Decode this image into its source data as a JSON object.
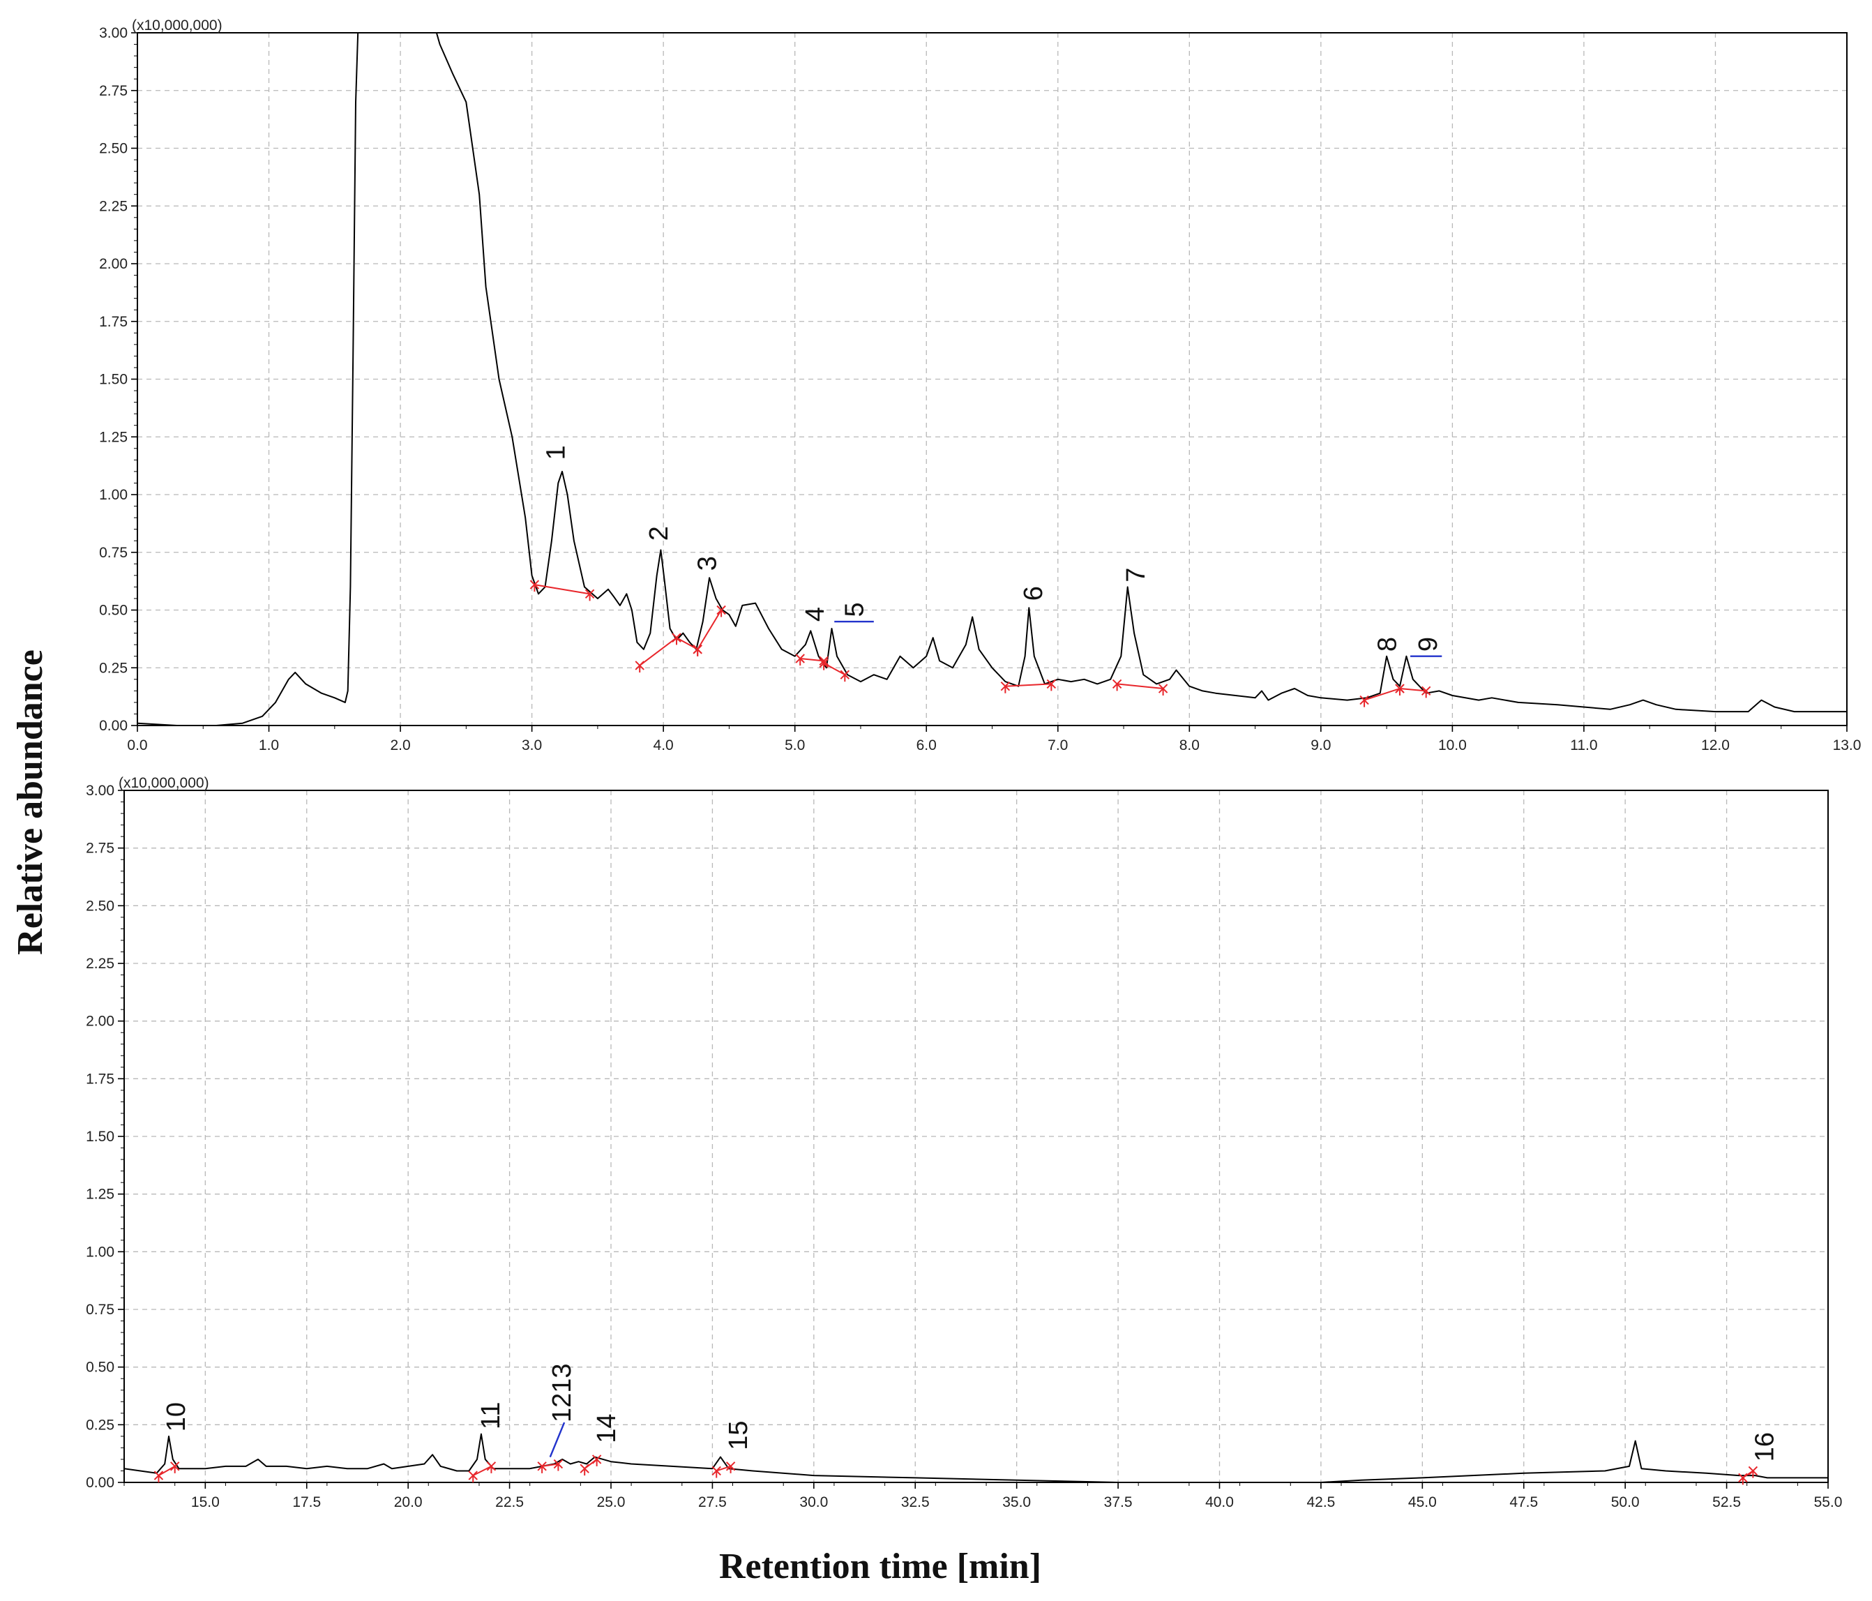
{
  "ylabel": "Relative abundance",
  "xlabel": "Retention time [min]",
  "colors": {
    "trace": "#000000",
    "baseline_marker": "#e8262b",
    "split_marker": "#2233cc",
    "grid": "#b8b8b8",
    "frame": "#000000"
  },
  "chart_data": [
    {
      "type": "line",
      "name": "upper",
      "multiplier": "(x10,000,000)",
      "xlim": [
        0,
        13
      ],
      "ylim": [
        0,
        3
      ],
      "x_ticks": [
        "0.0",
        "1.0",
        "2.0",
        "3.0",
        "4.0",
        "5.0",
        "6.0",
        "7.0",
        "8.0",
        "9.0",
        "10.0",
        "11.0",
        "12.0",
        "13.0"
      ],
      "x_tick_values": [
        0,
        1,
        2,
        3,
        4,
        5,
        6,
        7,
        8,
        9,
        10,
        11,
        12,
        13
      ],
      "x_minor_step": 0.5,
      "y_ticks": [
        "0.00",
        "0.25",
        "0.50",
        "0.75",
        "1.00",
        "1.25",
        "1.50",
        "1.75",
        "2.00",
        "2.25",
        "2.50",
        "2.75",
        "3.00"
      ],
      "y_tick_values": [
        0,
        0.25,
        0.5,
        0.75,
        1,
        1.25,
        1.5,
        1.75,
        2,
        2.25,
        2.5,
        2.75,
        3
      ],
      "grid": true,
      "trace": [
        [
          0,
          0.01
        ],
        [
          0.3,
          0.0
        ],
        [
          0.6,
          0.0
        ],
        [
          0.8,
          0.01
        ],
        [
          0.95,
          0.04
        ],
        [
          1.05,
          0.1
        ],
        [
          1.15,
          0.2
        ],
        [
          1.2,
          0.23
        ],
        [
          1.28,
          0.18
        ],
        [
          1.4,
          0.14
        ],
        [
          1.5,
          0.12
        ],
        [
          1.58,
          0.1
        ],
        [
          1.6,
          0.15
        ],
        [
          1.62,
          0.6
        ],
        [
          1.64,
          1.6
        ],
        [
          1.66,
          2.7
        ],
        [
          1.68,
          3.05
        ],
        [
          2.25,
          3.05
        ],
        [
          2.3,
          2.95
        ],
        [
          2.4,
          2.82
        ],
        [
          2.5,
          2.7
        ],
        [
          2.6,
          2.3
        ],
        [
          2.65,
          1.9
        ],
        [
          2.75,
          1.5
        ],
        [
          2.85,
          1.25
        ],
        [
          2.95,
          0.9
        ],
        [
          3.0,
          0.65
        ],
        [
          3.05,
          0.57
        ],
        [
          3.1,
          0.6
        ],
        [
          3.15,
          0.8
        ],
        [
          3.2,
          1.05
        ],
        [
          3.23,
          1.1
        ],
        [
          3.27,
          1.0
        ],
        [
          3.32,
          0.8
        ],
        [
          3.4,
          0.6
        ],
        [
          3.5,
          0.55
        ],
        [
          3.58,
          0.59
        ],
        [
          3.62,
          0.56
        ],
        [
          3.67,
          0.52
        ],
        [
          3.72,
          0.57
        ],
        [
          3.76,
          0.5
        ],
        [
          3.8,
          0.36
        ],
        [
          3.85,
          0.33
        ],
        [
          3.9,
          0.4
        ],
        [
          3.95,
          0.65
        ],
        [
          3.98,
          0.76
        ],
        [
          4.01,
          0.62
        ],
        [
          4.05,
          0.42
        ],
        [
          4.1,
          0.37
        ],
        [
          4.15,
          0.4
        ],
        [
          4.2,
          0.36
        ],
        [
          4.25,
          0.33
        ],
        [
          4.3,
          0.45
        ],
        [
          4.35,
          0.64
        ],
        [
          4.4,
          0.55
        ],
        [
          4.45,
          0.5
        ],
        [
          4.5,
          0.48
        ],
        [
          4.55,
          0.43
        ],
        [
          4.6,
          0.52
        ],
        [
          4.7,
          0.53
        ],
        [
          4.8,
          0.42
        ],
        [
          4.9,
          0.33
        ],
        [
          5.0,
          0.3
        ],
        [
          5.08,
          0.35
        ],
        [
          5.12,
          0.41
        ],
        [
          5.18,
          0.3
        ],
        [
          5.24,
          0.25
        ],
        [
          5.28,
          0.42
        ],
        [
          5.32,
          0.3
        ],
        [
          5.4,
          0.22
        ],
        [
          5.5,
          0.19
        ],
        [
          5.6,
          0.22
        ],
        [
          5.7,
          0.2
        ],
        [
          5.8,
          0.3
        ],
        [
          5.9,
          0.25
        ],
        [
          6.0,
          0.3
        ],
        [
          6.05,
          0.38
        ],
        [
          6.1,
          0.28
        ],
        [
          6.2,
          0.25
        ],
        [
          6.3,
          0.35
        ],
        [
          6.35,
          0.47
        ],
        [
          6.4,
          0.33
        ],
        [
          6.5,
          0.25
        ],
        [
          6.6,
          0.19
        ],
        [
          6.7,
          0.17
        ],
        [
          6.75,
          0.3
        ],
        [
          6.78,
          0.51
        ],
        [
          6.82,
          0.3
        ],
        [
          6.9,
          0.18
        ],
        [
          7.0,
          0.2
        ],
        [
          7.1,
          0.19
        ],
        [
          7.2,
          0.2
        ],
        [
          7.3,
          0.18
        ],
        [
          7.4,
          0.2
        ],
        [
          7.48,
          0.3
        ],
        [
          7.53,
          0.6
        ],
        [
          7.58,
          0.4
        ],
        [
          7.65,
          0.22
        ],
        [
          7.75,
          0.18
        ],
        [
          7.85,
          0.2
        ],
        [
          7.9,
          0.24
        ],
        [
          8.0,
          0.17
        ],
        [
          8.1,
          0.15
        ],
        [
          8.2,
          0.14
        ],
        [
          8.35,
          0.13
        ],
        [
          8.5,
          0.12
        ],
        [
          8.55,
          0.15
        ],
        [
          8.6,
          0.11
        ],
        [
          8.7,
          0.14
        ],
        [
          8.8,
          0.16
        ],
        [
          8.9,
          0.13
        ],
        [
          9.0,
          0.12
        ],
        [
          9.2,
          0.11
        ],
        [
          9.35,
          0.12
        ],
        [
          9.45,
          0.14
        ],
        [
          9.5,
          0.3
        ],
        [
          9.55,
          0.2
        ],
        [
          9.6,
          0.17
        ],
        [
          9.65,
          0.3
        ],
        [
          9.7,
          0.2
        ],
        [
          9.8,
          0.14
        ],
        [
          9.9,
          0.15
        ],
        [
          10.0,
          0.13
        ],
        [
          10.2,
          0.11
        ],
        [
          10.3,
          0.12
        ],
        [
          10.5,
          0.1
        ],
        [
          10.8,
          0.09
        ],
        [
          11.0,
          0.08
        ],
        [
          11.2,
          0.07
        ],
        [
          11.35,
          0.09
        ],
        [
          11.45,
          0.11
        ],
        [
          11.55,
          0.09
        ],
        [
          11.7,
          0.07
        ],
        [
          12.0,
          0.06
        ],
        [
          12.25,
          0.06
        ],
        [
          12.35,
          0.11
        ],
        [
          12.45,
          0.08
        ],
        [
          12.6,
          0.06
        ],
        [
          13.0,
          0.06
        ]
      ],
      "baselines": [
        [
          [
            3.02,
            0.61
          ],
          [
            3.44,
            0.57
          ]
        ],
        [
          [
            3.82,
            0.26
          ],
          [
            4.1,
            0.38
          ]
        ],
        [
          [
            4.1,
            0.38
          ],
          [
            4.26,
            0.33
          ]
        ],
        [
          [
            4.26,
            0.33
          ],
          [
            4.44,
            0.5
          ]
        ],
        [
          [
            5.04,
            0.29
          ],
          [
            5.22,
            0.28
          ]
        ],
        [
          [
            5.22,
            0.27
          ],
          [
            5.38,
            0.22
          ]
        ],
        [
          [
            6.6,
            0.17
          ],
          [
            6.95,
            0.18
          ]
        ],
        [
          [
            7.45,
            0.18
          ],
          [
            7.8,
            0.16
          ]
        ],
        [
          [
            9.33,
            0.11
          ],
          [
            9.6,
            0.16
          ]
        ],
        [
          [
            9.6,
            0.16
          ],
          [
            9.8,
            0.15
          ]
        ]
      ],
      "splits": [
        [
          [
            5.3,
            0.45
          ],
          [
            5.6,
            0.45
          ]
        ],
        [
          [
            9.68,
            0.3
          ],
          [
            9.92,
            0.3
          ]
        ]
      ],
      "peak_labels": [
        {
          "text": "1",
          "x": 3.25,
          "y": 1.15
        },
        {
          "text": "2",
          "x": 4.03,
          "y": 0.8
        },
        {
          "text": "3",
          "x": 4.4,
          "y": 0.67
        },
        {
          "text": "4",
          "x": 5.22,
          "y": 0.45
        },
        {
          "text": "5",
          "x": 5.52,
          "y": 0.47
        },
        {
          "text": "6",
          "x": 6.88,
          "y": 0.54
        },
        {
          "text": "7",
          "x": 7.66,
          "y": 0.62
        },
        {
          "text": "8",
          "x": 9.57,
          "y": 0.32
        },
        {
          "text": "9",
          "x": 9.88,
          "y": 0.32
        }
      ]
    },
    {
      "type": "line",
      "name": "lower",
      "multiplier": "(x10,000,000)",
      "xlim": [
        13,
        55
      ],
      "ylim": [
        0,
        3
      ],
      "x_ticks": [
        "15.0",
        "17.5",
        "20.0",
        "22.5",
        "25.0",
        "27.5",
        "30.0",
        "32.5",
        "35.0",
        "37.5",
        "40.0",
        "42.5",
        "45.0",
        "47.5",
        "50.0",
        "52.5",
        "55.0"
      ],
      "x_tick_values": [
        15,
        17.5,
        20,
        22.5,
        25,
        27.5,
        30,
        32.5,
        35,
        37.5,
        40,
        42.5,
        45,
        47.5,
        50,
        52.5,
        55
      ],
      "x_minor_step": 1.25,
      "y_ticks": [
        "0.00",
        "0.25",
        "0.50",
        "0.75",
        "1.00",
        "1.25",
        "1.50",
        "1.75",
        "2.00",
        "2.25",
        "2.50",
        "2.75",
        "3.00"
      ],
      "y_tick_values": [
        0,
        0.25,
        0.5,
        0.75,
        1,
        1.25,
        1.5,
        1.75,
        2,
        2.25,
        2.5,
        2.75,
        3
      ],
      "grid": true,
      "trace": [
        [
          13,
          0.06
        ],
        [
          13.4,
          0.05
        ],
        [
          13.8,
          0.04
        ],
        [
          14.0,
          0.08
        ],
        [
          14.1,
          0.2
        ],
        [
          14.2,
          0.1
        ],
        [
          14.35,
          0.06
        ],
        [
          15.0,
          0.06
        ],
        [
          15.5,
          0.07
        ],
        [
          16.0,
          0.07
        ],
        [
          16.3,
          0.1
        ],
        [
          16.5,
          0.07
        ],
        [
          17.0,
          0.07
        ],
        [
          17.5,
          0.06
        ],
        [
          18.0,
          0.07
        ],
        [
          18.5,
          0.06
        ],
        [
          19.0,
          0.06
        ],
        [
          19.4,
          0.08
        ],
        [
          19.6,
          0.06
        ],
        [
          20.0,
          0.07
        ],
        [
          20.4,
          0.08
        ],
        [
          20.6,
          0.12
        ],
        [
          20.8,
          0.07
        ],
        [
          21.2,
          0.05
        ],
        [
          21.5,
          0.05
        ],
        [
          21.7,
          0.1
        ],
        [
          21.8,
          0.21
        ],
        [
          21.9,
          0.1
        ],
        [
          22.1,
          0.06
        ],
        [
          22.5,
          0.06
        ],
        [
          23.0,
          0.06
        ],
        [
          23.3,
          0.07
        ],
        [
          23.6,
          0.08
        ],
        [
          23.8,
          0.1
        ],
        [
          24.0,
          0.08
        ],
        [
          24.2,
          0.09
        ],
        [
          24.4,
          0.08
        ],
        [
          24.6,
          0.11
        ],
        [
          25.0,
          0.09
        ],
        [
          25.5,
          0.08
        ],
        [
          26.5,
          0.07
        ],
        [
          27.5,
          0.06
        ],
        [
          27.7,
          0.11
        ],
        [
          27.9,
          0.06
        ],
        [
          28.5,
          0.05
        ],
        [
          30.0,
          0.03
        ],
        [
          32.5,
          0.02
        ],
        [
          35.0,
          0.01
        ],
        [
          37.5,
          0.0
        ],
        [
          40.0,
          0.0
        ],
        [
          42.5,
          0.0
        ],
        [
          43.5,
          0.01
        ],
        [
          45.0,
          0.02
        ],
        [
          47.5,
          0.04
        ],
        [
          49.5,
          0.05
        ],
        [
          50.1,
          0.07
        ],
        [
          50.25,
          0.18
        ],
        [
          50.4,
          0.06
        ],
        [
          51.0,
          0.05
        ],
        [
          52.0,
          0.04
        ],
        [
          52.8,
          0.03
        ],
        [
          53.2,
          0.03
        ],
        [
          53.5,
          0.02
        ],
        [
          55.0,
          0.02
        ]
      ],
      "baselines": [
        [
          [
            13.85,
            0.03
          ],
          [
            14.25,
            0.07
          ]
        ],
        [
          [
            21.6,
            0.03
          ],
          [
            22.05,
            0.07
          ]
        ],
        [
          [
            23.3,
            0.07
          ],
          [
            23.7,
            0.08
          ]
        ],
        [
          [
            24.35,
            0.06
          ],
          [
            24.65,
            0.1
          ]
        ],
        [
          [
            27.6,
            0.05
          ],
          [
            27.95,
            0.07
          ]
        ],
        [
          [
            52.9,
            0.02
          ],
          [
            53.15,
            0.05
          ]
        ]
      ],
      "splits": [
        [
          [
            23.5,
            0.11
          ],
          [
            23.85,
            0.26
          ]
        ]
      ],
      "peak_labels": [
        {
          "text": "10",
          "x": 14.5,
          "y": 0.22
        },
        {
          "text": "11",
          "x": 22.25,
          "y": 0.23
        },
        {
          "text": "1213",
          "x": 24.0,
          "y": 0.26
        },
        {
          "text": "14",
          "x": 25.1,
          "y": 0.17
        },
        {
          "text": "15",
          "x": 28.35,
          "y": 0.14
        },
        {
          "text": "16",
          "x": 53.65,
          "y": 0.09
        }
      ]
    }
  ]
}
